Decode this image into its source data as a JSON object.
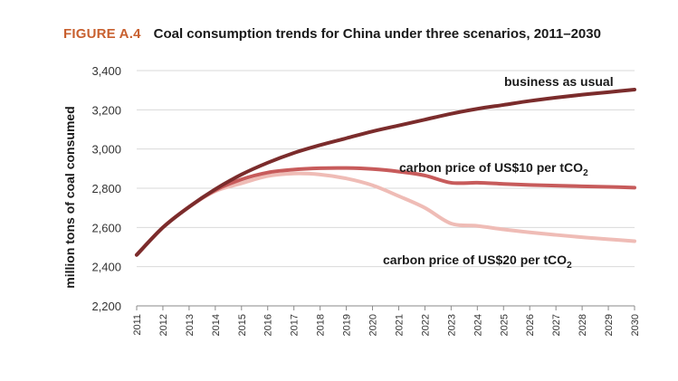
{
  "figure": {
    "label": "FIGURE A.4",
    "title": "Coal consumption trends for China under three scenarios, 2011–2030"
  },
  "chart_data": {
    "type": "line",
    "title": "Coal consumption trends for China under three scenarios, 2011–2030",
    "xlabel": "",
    "ylabel": "million tons of coal consumed",
    "ylim": [
      2200,
      3400
    ],
    "yticks": [
      2200,
      2400,
      2600,
      2800,
      3000,
      3200,
      3400
    ],
    "ytick_labels": [
      "2,200",
      "2,400",
      "2,600",
      "2,800",
      "3,000",
      "3,200",
      "3,400"
    ],
    "x": [
      2011,
      2012,
      2013,
      2014,
      2015,
      2016,
      2017,
      2018,
      2019,
      2020,
      2021,
      2022,
      2023,
      2024,
      2025,
      2026,
      2027,
      2028,
      2029,
      2030
    ],
    "x_labels": [
      "2011",
      "2012",
      "2013",
      "2014",
      "2015",
      "2016",
      "2017",
      "2018",
      "2019",
      "2020",
      "2021",
      "2022",
      "2023",
      "2024",
      "2025",
      "2026",
      "2027",
      "2028",
      "2029",
      "2030"
    ],
    "grid": true,
    "series": [
      {
        "name": "business as usual",
        "color": "#7b2c2c",
        "values": [
          2460,
          2600,
          2705,
          2795,
          2870,
          2930,
          2980,
          3020,
          3055,
          3090,
          3120,
          3150,
          3180,
          3205,
          3225,
          3245,
          3262,
          3277,
          3290,
          3303
        ]
      },
      {
        "name": "carbon price of US$10 per tCO2",
        "label_text": "carbon price of US$10 per tCO",
        "label_sub": "2",
        "color": "#c75b5b",
        "values": [
          2460,
          2600,
          2705,
          2790,
          2845,
          2880,
          2895,
          2902,
          2903,
          2898,
          2885,
          2865,
          2828,
          2828,
          2822,
          2817,
          2813,
          2810,
          2807,
          2803
        ]
      },
      {
        "name": "carbon price of US$20 per tCO2",
        "label_text": "carbon price of US$20 per tCO",
        "label_sub": "2",
        "color": "#efbcb6",
        "values": [
          2460,
          2600,
          2705,
          2785,
          2825,
          2862,
          2875,
          2870,
          2850,
          2815,
          2760,
          2700,
          2620,
          2608,
          2590,
          2575,
          2562,
          2550,
          2540,
          2530
        ]
      }
    ]
  }
}
